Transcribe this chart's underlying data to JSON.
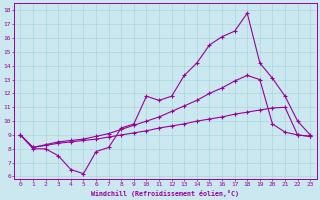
{
  "xlabel": "Windchill (Refroidissement éolien,°C)",
  "x_ticks": [
    0,
    1,
    2,
    3,
    4,
    5,
    6,
    7,
    8,
    9,
    10,
    11,
    12,
    13,
    14,
    15,
    16,
    17,
    18,
    19,
    20,
    21,
    22,
    23
  ],
  "y_ticks": [
    6,
    7,
    8,
    9,
    10,
    11,
    12,
    13,
    14,
    15,
    16,
    17,
    18
  ],
  "xlim": [
    -0.5,
    23.5
  ],
  "ylim": [
    5.8,
    18.5
  ],
  "bg_color": "#cbe8f0",
  "line_color": "#990099",
  "grid_color": "#a8d8d8",
  "line1_x": [
    0,
    1,
    2,
    3,
    4,
    5,
    6,
    7,
    8,
    9,
    10,
    11,
    12,
    13,
    14,
    15,
    16,
    17,
    18,
    19,
    20,
    21,
    22,
    23
  ],
  "line1_y": [
    9,
    8,
    8,
    7.5,
    6.5,
    6.2,
    7.8,
    8.1,
    9.5,
    9.8,
    11.8,
    11.5,
    11.8,
    13.3,
    14.2,
    15.5,
    16.1,
    16.5,
    17.8,
    14.2,
    13.1,
    11.8,
    10.0,
    9.0
  ],
  "line2_x": [
    0,
    1,
    2,
    3,
    4,
    5,
    6,
    7,
    8,
    9,
    10,
    11,
    12,
    13,
    14,
    15,
    16,
    17,
    18,
    19,
    20,
    21,
    22,
    23
  ],
  "line2_y": [
    9,
    8.1,
    8.3,
    8.5,
    8.6,
    8.7,
    8.9,
    9.1,
    9.4,
    9.7,
    10.0,
    10.3,
    10.7,
    11.1,
    11.5,
    12.0,
    12.4,
    12.9,
    13.3,
    13.0,
    9.8,
    9.2,
    9.0,
    8.9
  ],
  "line3_x": [
    0,
    1,
    2,
    3,
    4,
    5,
    6,
    7,
    8,
    9,
    10,
    11,
    12,
    13,
    14,
    15,
    16,
    17,
    18,
    19,
    20,
    21,
    22,
    23
  ],
  "line3_y": [
    9,
    8.1,
    8.25,
    8.4,
    8.5,
    8.6,
    8.7,
    8.85,
    9.0,
    9.15,
    9.3,
    9.5,
    9.65,
    9.8,
    10.0,
    10.15,
    10.3,
    10.5,
    10.65,
    10.8,
    10.95,
    11.0,
    9.0,
    8.9
  ]
}
